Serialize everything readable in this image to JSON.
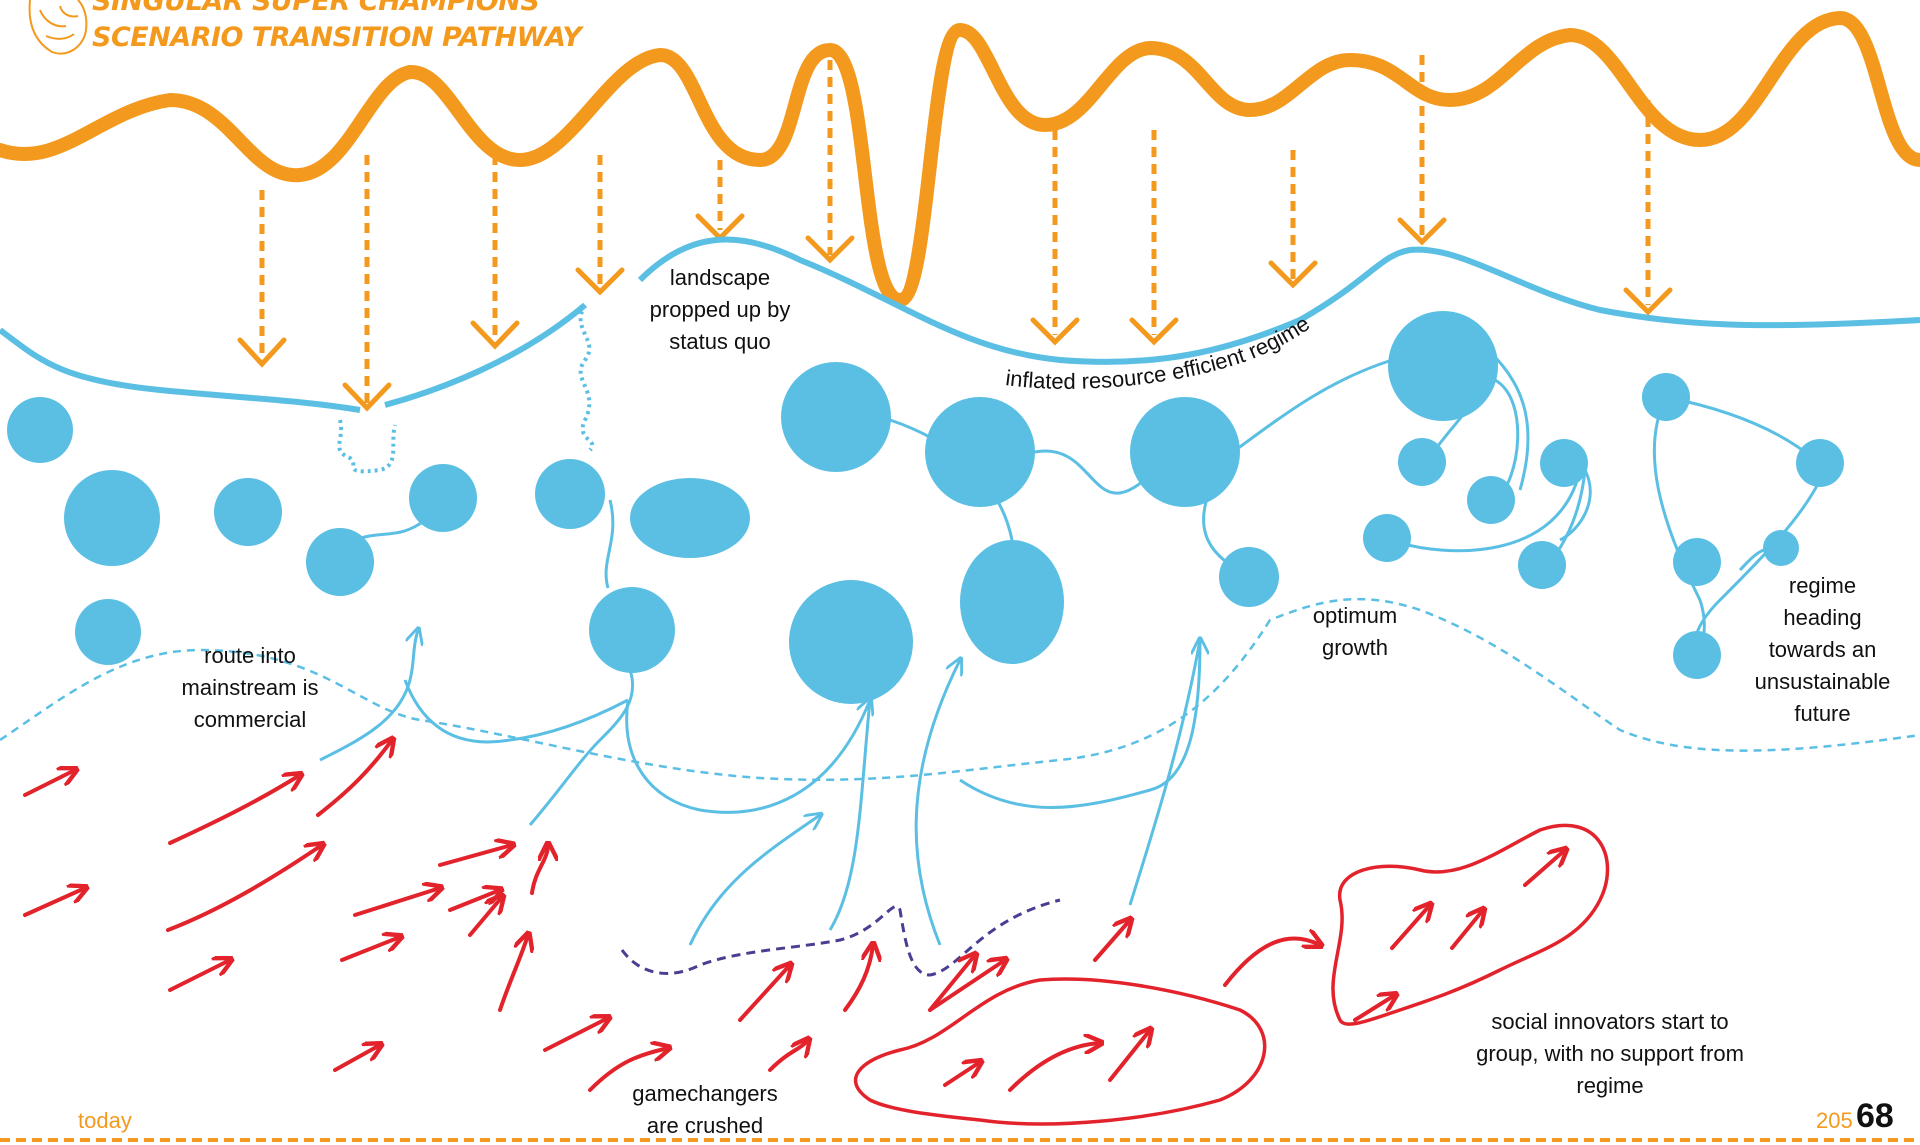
{
  "header": {
    "line1": "SINGULAR SUPER CHAMPIONS",
    "line2": "SCENARIO TRANSITION PATHWAY"
  },
  "labels": {
    "landscape": "landscape\npropped up by\nstatus quo",
    "regime_curve": "inflated resource efficient regime",
    "route": "route into\nmainstream is\ncommercial",
    "optimum": "optimum\ngrowth",
    "regime_heading": "regime\nheading\ntowards an\nunsustainable\nfuture",
    "gamechangers": "gamechangers\nare crushed",
    "social": "social innovators start to\ngroup, with no support from\nregime"
  },
  "axis": {
    "start": "today",
    "end": "205",
    "page_number": "68"
  },
  "colors": {
    "orange": "#f39a1e",
    "blue": "#5bbfe4",
    "red": "#e3232c",
    "purple": "#4b3e92",
    "text": "#111111"
  }
}
